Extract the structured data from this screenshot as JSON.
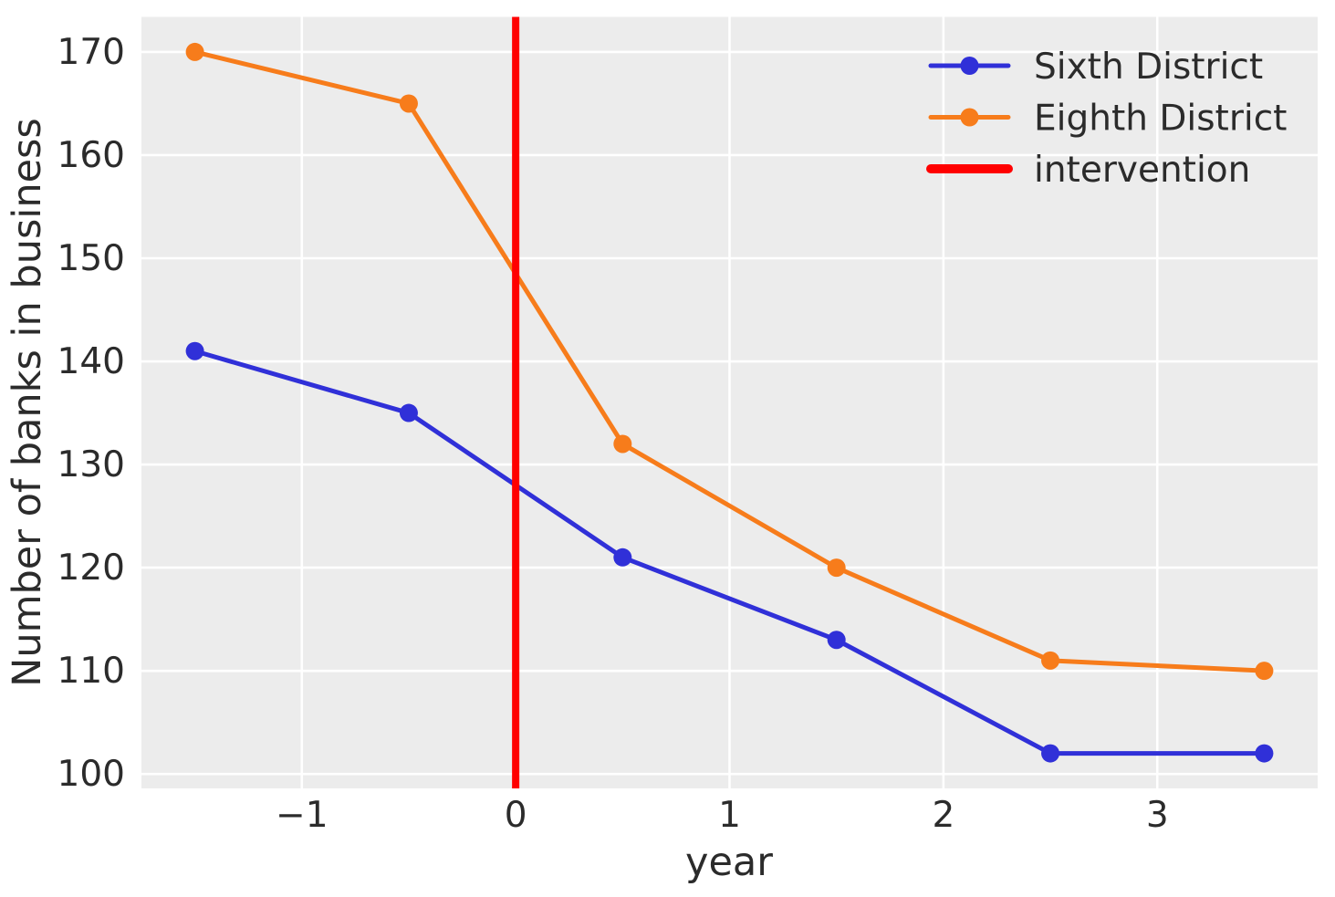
{
  "chart_data": {
    "type": "line",
    "title": "",
    "xlabel": "year",
    "ylabel": "Number of banks in business",
    "x": [
      -1.5,
      -0.5,
      0.5,
      1.5,
      2.5,
      3.5
    ],
    "series": [
      {
        "name": "Sixth District",
        "color": "#3030d8",
        "values": [
          141,
          135,
          121,
          113,
          102,
          102
        ]
      },
      {
        "name": "Eighth District",
        "color": "#f77c1b",
        "values": [
          170,
          165,
          132,
          120,
          111,
          110
        ]
      }
    ],
    "intervention": {
      "label": "intervention",
      "x": 0,
      "color": "#ff0000"
    },
    "x_ticks": [
      -1,
      0,
      1,
      2,
      3
    ],
    "x_tick_labels": [
      "−1",
      "0",
      "1",
      "2",
      "3"
    ],
    "y_ticks": [
      100,
      110,
      120,
      130,
      140,
      150,
      160,
      170
    ],
    "y_tick_labels": [
      "100",
      "110",
      "120",
      "130",
      "140",
      "150",
      "160",
      "170"
    ],
    "xlim": [
      -1.75,
      3.75
    ],
    "ylim": [
      98.6,
      173.4
    ],
    "grid": true,
    "legend_position": "upper right",
    "colors": {
      "figure_bg": "#ffffff",
      "plot_bg": "#ececec",
      "grid": "#ffffff",
      "text": "#2b2b2b"
    }
  }
}
